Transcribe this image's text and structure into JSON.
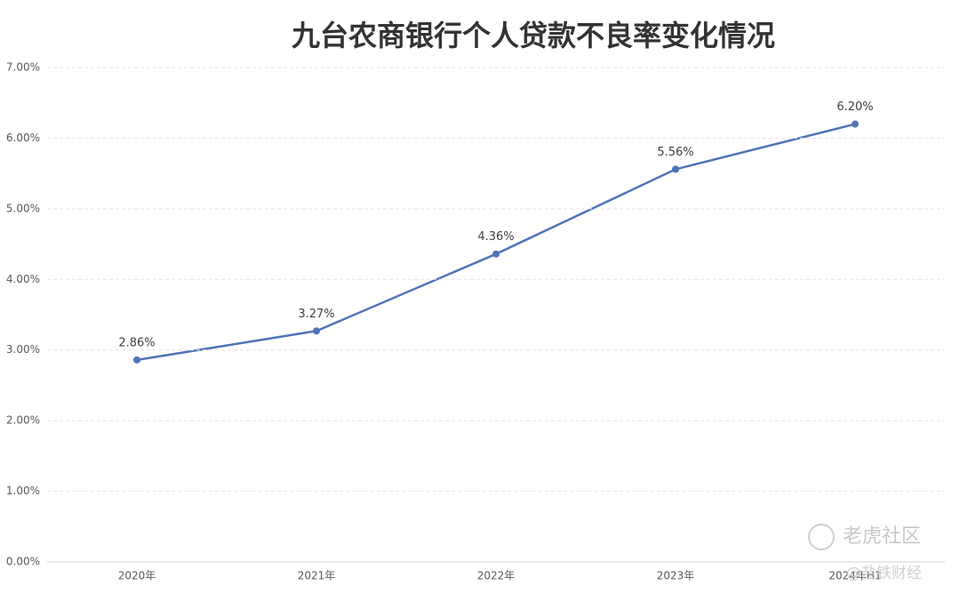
{
  "chart_data": {
    "type": "line",
    "title": "九台农商银行个人贷款不良率变化情况",
    "categories": [
      "2020年",
      "2021年",
      "2022年",
      "2023年",
      "2024年H1"
    ],
    "values": [
      2.86,
      3.27,
      4.36,
      5.56,
      6.2
    ],
    "value_labels": [
      "2.86%",
      "3.27%",
      "4.36%",
      "5.56%",
      "6.20%"
    ],
    "color": "#4f74b8",
    "ylim": [
      0,
      7
    ],
    "yticks": [
      {
        "value": 0,
        "label": "0.00%"
      },
      {
        "value": 1,
        "label": "1.00%"
      },
      {
        "value": 2,
        "label": "2.00%"
      },
      {
        "value": 3,
        "label": "3.00%"
      },
      {
        "value": 4,
        "label": "4.00%"
      },
      {
        "value": 5,
        "label": "5.00%"
      },
      {
        "value": 6,
        "label": "6.00%"
      },
      {
        "value": 7,
        "label": "7.00%"
      }
    ],
    "grid": true,
    "annotations": [
      "老虎社区",
      "@盐铁财经"
    ]
  }
}
